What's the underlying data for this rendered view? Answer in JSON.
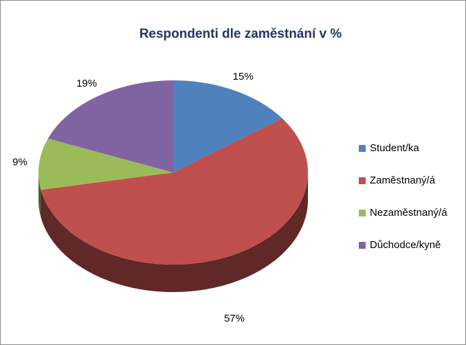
{
  "chart_data": {
    "type": "pie",
    "title": "Respondenti dle zaměstnání v %",
    "categories": [
      "Student/ka",
      "Zaměstnaný/á",
      "Nezaměstnaný/á",
      "Důchodce/kyně"
    ],
    "values": [
      15,
      57,
      9,
      19
    ],
    "value_labels": [
      "15%",
      "57%",
      "9%",
      "19%"
    ],
    "colors": [
      "#4f81bd",
      "#c0504d",
      "#9bbb59",
      "#8064a2"
    ],
    "legend": "right"
  }
}
